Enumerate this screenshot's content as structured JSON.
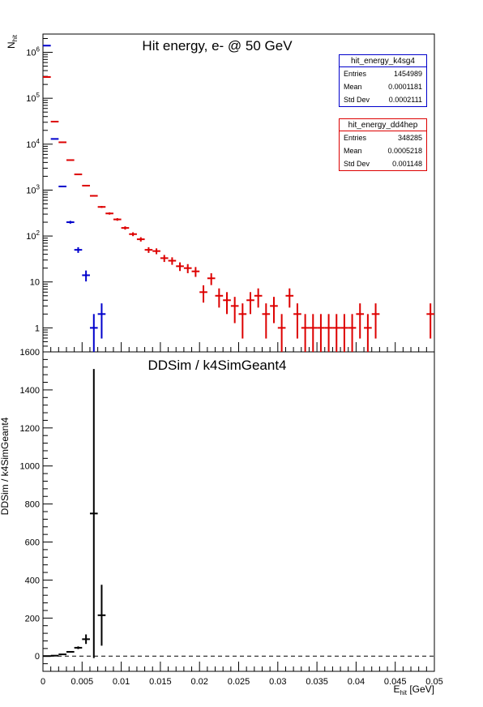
{
  "colors": {
    "k4sg4": "#0000cc",
    "dd4hep": "#dd0000",
    "ratio": "#000000"
  },
  "top_panel": {
    "title": "Hit energy,  e- @ 50 GeV",
    "ylabel_main": "N",
    "ylabel_sub": "hit"
  },
  "bottom_panel": {
    "title": "DDSim / k4SimGeant4",
    "ylabel": "DDSim / k4SimGeant4",
    "xlabel_main": "E",
    "xlabel_sub": "hit",
    "xlabel_unit": " [GeV]"
  },
  "stats_boxes": [
    {
      "name": "hit_energy_k4sg4",
      "color": "#0000cc",
      "rows": [
        {
          "label": "Entries",
          "value": "1454989"
        },
        {
          "label": "Mean",
          "value": "0.0001181"
        },
        {
          "label": "Std Dev",
          "value": "0.0002111"
        }
      ]
    },
    {
      "name": "hit_energy_dd4hep",
      "color": "#dd0000",
      "rows": [
        {
          "label": "Entries",
          "value": "348285"
        },
        {
          "label": "Mean",
          "value": "0.0005218"
        },
        {
          "label": "Std Dev",
          "value": "0.001148"
        }
      ]
    }
  ],
  "chart_data": [
    {
      "type": "scatter",
      "title": "Hit energy,  e- @ 50 GeV",
      "xlim": [
        0,
        0.05
      ],
      "ylim": [
        0.3,
        2500000
      ],
      "yscale": "log",
      "bin_width": 0.001,
      "ytick_labels": [
        "1",
        "10",
        "10^2",
        "10^3",
        "10^4",
        "10^5",
        "10^6"
      ],
      "ytick_values": [
        1,
        10,
        100,
        1000,
        10000,
        100000,
        1000000
      ],
      "series": [
        {
          "name": "hit_energy_k4sg4",
          "color": "#0000cc",
          "x": [
            0.0005,
            0.0015,
            0.0025,
            0.0035,
            0.0045,
            0.0055,
            0.0065,
            0.0075
          ],
          "y": [
            1400000,
            13000,
            1200,
            200,
            50,
            14,
            1,
            2
          ]
        },
        {
          "name": "hit_energy_dd4hep",
          "color": "#dd0000",
          "x": [
            0.0005,
            0.0015,
            0.0025,
            0.0035,
            0.0045,
            0.0055,
            0.0065,
            0.0075,
            0.0085,
            0.0095,
            0.0105,
            0.0115,
            0.0125,
            0.0135,
            0.0145,
            0.0155,
            0.0165,
            0.0175,
            0.0185,
            0.0195,
            0.0205,
            0.0215,
            0.0225,
            0.0235,
            0.0245,
            0.0255,
            0.0265,
            0.0275,
            0.0285,
            0.0295,
            0.0305,
            0.0315,
            0.0325,
            0.0335,
            0.0345,
            0.0355,
            0.0365,
            0.0375,
            0.0385,
            0.0395,
            0.0405,
            0.0415,
            0.0425,
            0.0495
          ],
          "y": [
            290000,
            31000,
            11000,
            4500,
            2200,
            1250,
            750,
            430,
            310,
            230,
            150,
            110,
            85,
            50,
            47,
            33,
            29,
            22,
            20,
            17,
            6,
            12,
            5,
            4,
            3,
            2,
            4,
            5,
            2,
            3,
            1,
            5,
            2,
            1,
            1,
            1,
            1,
            1,
            1,
            1,
            2,
            1,
            2,
            2
          ]
        }
      ]
    },
    {
      "type": "scatter",
      "title": "DDSim / k4SimGeant4",
      "ylabel": "DDSim / k4SimGeant4",
      "xlabel": "E_hit [GeV]",
      "xlim": [
        0,
        0.05
      ],
      "ylim": [
        -80,
        1600
      ],
      "ytick_labels": [
        "0",
        "200",
        "400",
        "600",
        "800",
        "1000",
        "1200",
        "1400",
        "1600"
      ],
      "xtick_labels": [
        "0",
        "0.005",
        "0.01",
        "0.015",
        "0.02",
        "0.025",
        "0.03",
        "0.035",
        "0.04",
        "0.045",
        "0.05"
      ],
      "reference_line": 0,
      "series": [
        {
          "name": "DDSim / k4SimGeant4",
          "color": "#000000",
          "x": [
            0.0005,
            0.0015,
            0.0025,
            0.0035,
            0.0045,
            0.0055,
            0.0065,
            0.0075
          ],
          "y": [
            0.21,
            2.4,
            9.2,
            22.5,
            44,
            89,
            750,
            215
          ],
          "yerr": [
            0.001,
            0.05,
            0.4,
            2,
            7,
            25,
            760,
            160
          ]
        }
      ]
    }
  ]
}
